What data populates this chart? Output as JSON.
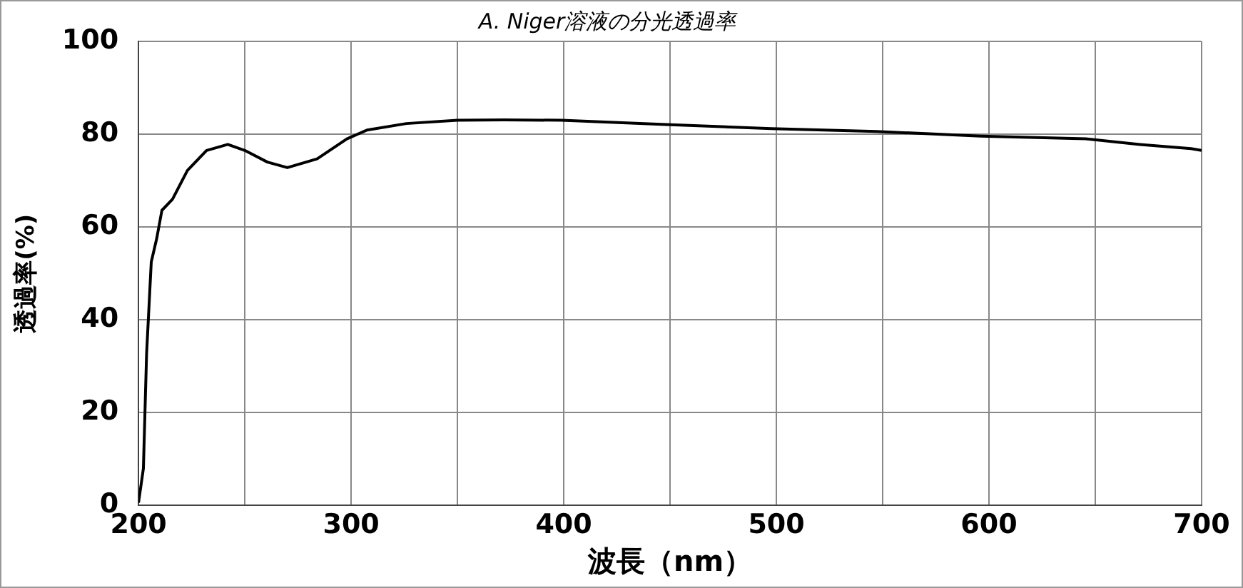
{
  "chart_data": {
    "type": "line",
    "title": "A. Niger溶液の分光透過率",
    "xlabel": "波長（nm）",
    "ylabel": "透過率(%)",
    "x": [
      200,
      202.3,
      203.8,
      206,
      208.5,
      211,
      216,
      223,
      232,
      242,
      250,
      260.6,
      270,
      284,
      298,
      307.5,
      326,
      350,
      372,
      399,
      448,
      497.7,
      547,
      596,
      645.6,
      671,
      695,
      700
    ],
    "series": [
      {
        "color": "#000000",
        "values": [
          0.6,
          8,
          32.7,
          52.5,
          57.4,
          63.6,
          66,
          72.2,
          76.5,
          77.8,
          76.5,
          74,
          72.8,
          74.7,
          79,
          80.9,
          82.3,
          83,
          83.1,
          83,
          82.1,
          81.2,
          80.6,
          79.6,
          79,
          77.8,
          76.9,
          76.5
        ]
      }
    ],
    "xlim": [
      200,
      700
    ],
    "xticks": [
      200,
      {
        "value": 250,
        "label": null
      },
      300,
      {
        "value": 350,
        "label": null
      },
      400,
      {
        "value": 450,
        "label": null
      },
      500,
      {
        "value": 550,
        "label": null
      },
      600,
      {
        "value": 650,
        "label": null
      },
      700
    ],
    "ylim": [
      0,
      100
    ],
    "yticks": [
      0,
      20,
      40,
      60,
      80,
      100
    ],
    "grid": true,
    "legend": false,
    "marker": "none",
    "line_style": "solid"
  }
}
